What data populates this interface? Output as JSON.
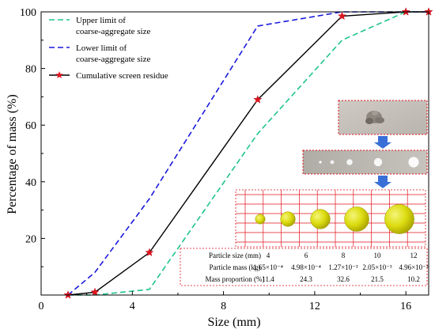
{
  "chart_data": {
    "type": "line",
    "xlabel": "Size (mm)",
    "ylabel": "Percentage of mass (%)",
    "xlim": [
      0,
      17
    ],
    "ylim": [
      0,
      100
    ],
    "xticks": [
      0,
      4,
      8,
      12,
      16
    ],
    "yticks": [
      0,
      20,
      40,
      60,
      80,
      100
    ],
    "legend_position": "top-left",
    "series": [
      {
        "name": "Upper limit of coarse-aggregate size",
        "name_lines": [
          "Upper limit of",
          "coarse-aggregate size"
        ],
        "style": "dashed",
        "color": "#1fc48c",
        "x": [
          1.18,
          2.36,
          4.75,
          9.5,
          13.2,
          16,
          17
        ],
        "y": [
          0,
          0,
          2,
          57,
          90,
          100,
          100
        ]
      },
      {
        "name": "Lower limit of coarse-aggregate size",
        "name_lines": [
          "Lower limit of",
          "coarse-aggregate size"
        ],
        "style": "dashed",
        "color": "#1a1adc",
        "x": [
          1.18,
          2.36,
          4.75,
          9.5,
          13.2,
          16,
          17
        ],
        "y": [
          0,
          8,
          34,
          95,
          100,
          100,
          100
        ]
      },
      {
        "name": "Cumulative screen residue",
        "name_lines": [
          "Cumulative screen residue"
        ],
        "style": "solid-star",
        "color": "#000000",
        "marker_color": "#e0141e",
        "x": [
          1.18,
          2.36,
          4.75,
          9.5,
          13.2,
          16,
          17
        ],
        "y": [
          0,
          1,
          15,
          69,
          98.5,
          100,
          100
        ]
      }
    ]
  },
  "inset": {
    "spheres": {
      "sizes": [
        4,
        6,
        8,
        10,
        12
      ]
    },
    "table": {
      "rows": [
        {
          "label": "Particle size (mm)",
          "values": [
            "4",
            "6",
            "8",
            "10",
            "12"
          ]
        },
        {
          "label": "Particle mass (kg)",
          "values": [
            "1.65×10⁻⁴",
            "4.98×10⁻⁴",
            "1.27×10⁻³",
            "2.05×10⁻³",
            "4.96×10⁻³"
          ]
        },
        {
          "label": "Mass proportion (%)",
          "values": [
            "11.4",
            "24.3",
            "32.6",
            "21.5",
            "10.2"
          ]
        }
      ]
    }
  },
  "colors": {
    "accent_red": "#e0141e",
    "arrow_blue": "#3a6fd8",
    "sphere_yellow": "#d6d600"
  }
}
